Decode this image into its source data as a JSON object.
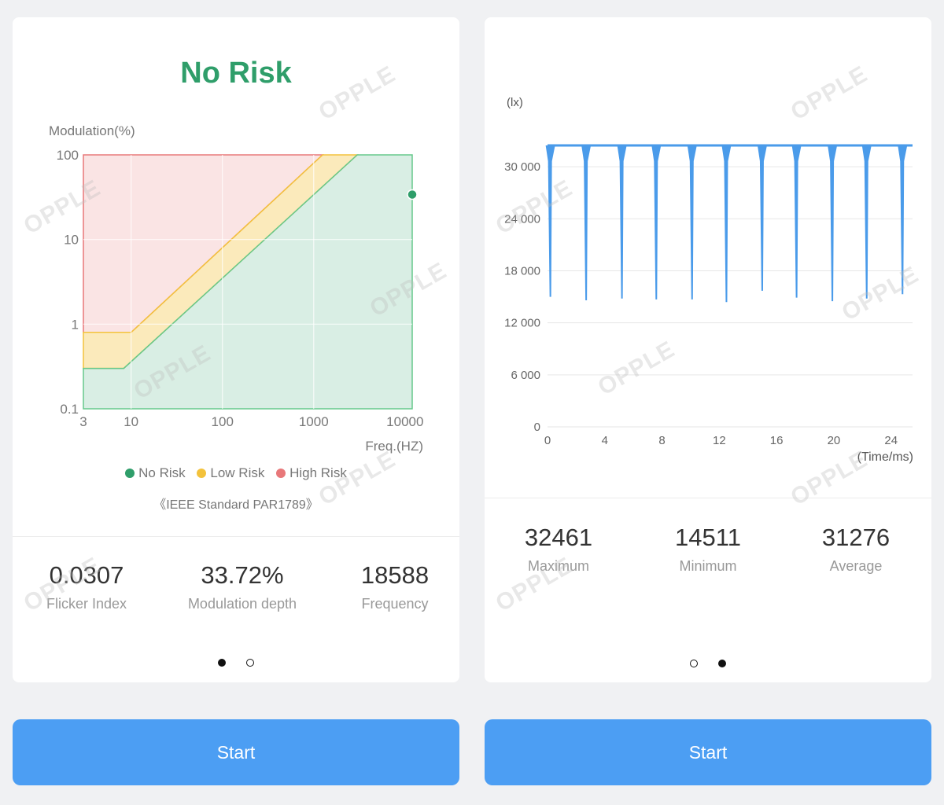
{
  "left_panel": {
    "status": "No Risk",
    "status_color": "#2f9e6a",
    "legend": [
      {
        "label": "No Risk",
        "color": "#2f9e6a"
      },
      {
        "label": "Low Risk",
        "color": "#f3c23c"
      },
      {
        "label": "High Risk",
        "color": "#e8787a"
      }
    ],
    "standard": "《IEEE Standard PAR1789》",
    "stats": [
      {
        "value": "0.0307",
        "label": "Flicker Index"
      },
      {
        "value": "33.72%",
        "label": "Modulation depth"
      },
      {
        "value": "18588",
        "label": "Frequency"
      }
    ],
    "page_indicator": {
      "count": 2,
      "active": 0
    }
  },
  "right_panel": {
    "stats": [
      {
        "value": "32461",
        "label": "Maximum"
      },
      {
        "value": "14511",
        "label": "Minimum"
      },
      {
        "value": "31276",
        "label": "Average"
      }
    ],
    "page_indicator": {
      "count": 2,
      "active": 1
    }
  },
  "start_label": "Start",
  "watermark": "OPPLE",
  "chart_data": [
    {
      "type": "area",
      "ylabel": "Modulation(%)",
      "xlabel": "Freq.(HZ)",
      "x_scale": "log",
      "y_scale": "log",
      "xlim": [
        3,
        12000
      ],
      "ylim": [
        0.1,
        100
      ],
      "x_ticks": [
        3,
        10,
        100,
        1000,
        10000
      ],
      "x_tick_labels": [
        "3",
        "10",
        "100",
        "1000",
        "10000"
      ],
      "y_ticks": [
        0.1,
        1,
        10,
        100
      ],
      "y_tick_labels": [
        "0.1",
        "1",
        "10",
        "100"
      ],
      "regions": [
        {
          "name": "No Risk",
          "color": "#2f9e6a",
          "boundary": [
            [
              3,
              0.3
            ],
            [
              8.3,
              0.3
            ],
            [
              3000,
              100
            ]
          ]
        },
        {
          "name": "Low Risk",
          "color": "#f3c23c",
          "boundary": [
            [
              3,
              0.8
            ],
            [
              10,
              0.8
            ],
            [
              1250,
              100
            ]
          ]
        },
        {
          "name": "High Risk",
          "color": "#e8787a"
        }
      ],
      "measurement": {
        "frequency": 12000,
        "modulation": 34,
        "color": "#2f9e6a"
      },
      "grid": true
    },
    {
      "type": "line",
      "ylabel": "(lx)",
      "xlabel": "(Time/ms)",
      "xlim": [
        0,
        25.5
      ],
      "ylim": [
        0,
        32461
      ],
      "x_ticks": [
        0,
        4,
        8,
        12,
        16,
        20,
        24
      ],
      "x_tick_labels": [
        "0",
        "4",
        "8",
        "12",
        "16",
        "20",
        "24"
      ],
      "y_ticks": [
        0,
        6000,
        12000,
        18000,
        24000,
        30000
      ],
      "y_tick_labels": [
        "0",
        "6 000",
        "12 000",
        "18 000",
        "24 000",
        "30 000"
      ],
      "baseline": 32461,
      "dip_times_ms": [
        0.2,
        2.7,
        5.2,
        7.6,
        10.1,
        12.5,
        15.0,
        17.4,
        19.9,
        22.3,
        24.8
      ],
      "dip_minima": [
        15000,
        14600,
        14800,
        14700,
        14700,
        14400,
        15700,
        14900,
        14500,
        14800,
        15300
      ],
      "color": "#4a9bea",
      "grid": true
    }
  ]
}
